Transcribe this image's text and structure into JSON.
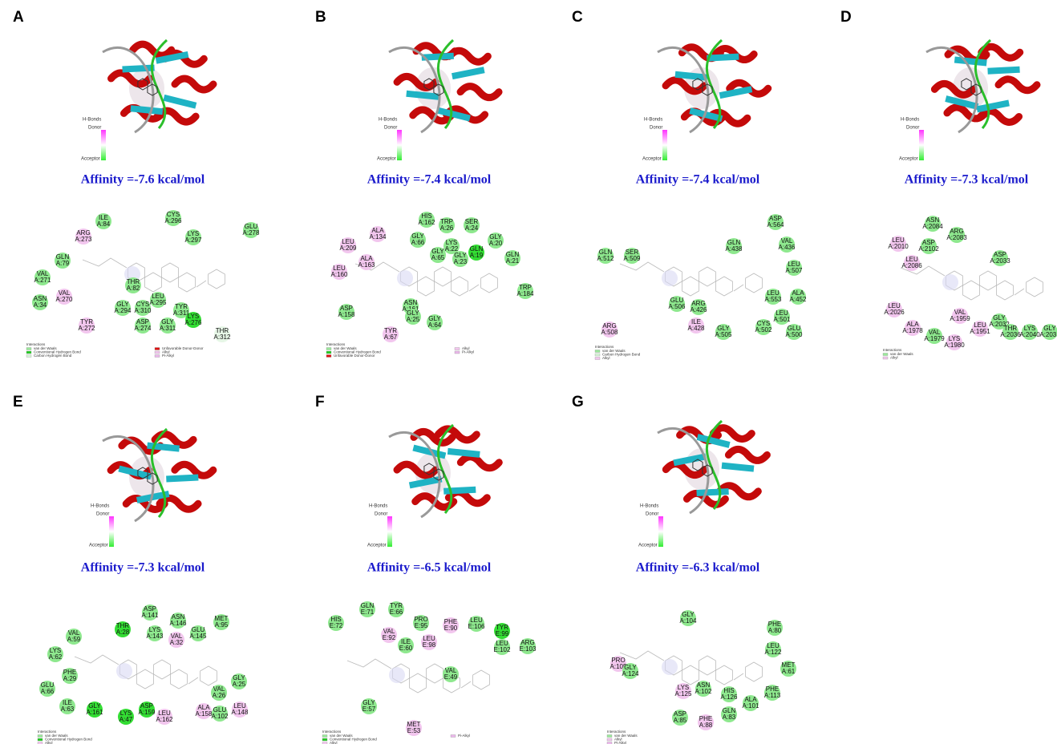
{
  "legend": {
    "title": "H-Bonds",
    "donor": "Donor",
    "acceptor": "Acceptor"
  },
  "interactions_title": "Interactions",
  "panels": [
    {
      "letter": "A",
      "affinity": "Affinity =-7.6 kcal/mol",
      "legend_items": [
        [
          "van der Waals",
          "#9be89b"
        ],
        [
          "Conventional Hydrogen Bond",
          "#22cc22"
        ],
        [
          "Carbon Hydrogen Bond",
          "#d8f5d8"
        ],
        [
          "Unfavorable Donor-Donor",
          "#dd1111"
        ],
        [
          "Alkyl",
          "#f3c6ee"
        ],
        [
          "Pi-Alkyl",
          "#ecb8ec"
        ]
      ],
      "residues": [
        [
          "ILE",
          "A:84",
          "#8ee88e"
        ],
        [
          "CYS",
          "A:296",
          "#8ee88e"
        ],
        [
          "GLU",
          "A:278",
          "#8ee88e"
        ],
        [
          "ARG",
          "A:273",
          "#f2c6ee"
        ],
        [
          "LYS",
          "A:297",
          "#8ee88e"
        ],
        [
          "GLN",
          "A:79",
          "#8ee88e"
        ],
        [
          "VAL",
          "A:271",
          "#8ee88e"
        ],
        [
          "THR",
          "A:82",
          "#8ee88e"
        ],
        [
          "VAL",
          "A:270",
          "#f2c6ee"
        ],
        [
          "LEU",
          "A:295",
          "#8ee88e"
        ],
        [
          "ASN",
          "A:34",
          "#8ee88e"
        ],
        [
          "GLY",
          "A:294",
          "#8ee88e"
        ],
        [
          "CYS",
          "A:310",
          "#8ee88e"
        ],
        [
          "TYR",
          "A:311",
          "#8ee88e"
        ],
        [
          "LYS",
          "A:276",
          "#33dd33"
        ],
        [
          "ASP",
          "A:274",
          "#8ee88e"
        ],
        [
          "GLY",
          "A:311",
          "#8ee88e"
        ],
        [
          "TYR",
          "A:272",
          "#f2c6ee"
        ],
        [
          "THR",
          "A:312",
          "#e6f6e6"
        ]
      ]
    },
    {
      "letter": "B",
      "affinity": "Affinity =-7.4 kcal/mol",
      "legend_items": [
        [
          "van der Waals",
          "#9be89b"
        ],
        [
          "Conventional Hydrogen Bond",
          "#22cc22"
        ],
        [
          "Unfavorable Donor-Donor",
          "#dd1111"
        ],
        [
          "Alkyl",
          "#f3c6ee"
        ],
        [
          "Pi-Alkyl",
          "#ecb8ec"
        ]
      ],
      "residues": [
        [
          "HIS",
          "A:162",
          "#8ee88e"
        ],
        [
          "TRP",
          "A:26",
          "#8ee88e"
        ],
        [
          "SER",
          "A:24",
          "#8ee88e"
        ],
        [
          "ALA",
          "A:134",
          "#f2c6ee"
        ],
        [
          "GLY",
          "A:66",
          "#8ee88e"
        ],
        [
          "GLY",
          "A:20",
          "#8ee88e"
        ],
        [
          "LEU",
          "A:209",
          "#f2c6ee"
        ],
        [
          "GLY",
          "A:65",
          "#8ee88e"
        ],
        [
          "LYS",
          "A:22",
          "#8ee88e"
        ],
        [
          "GLY",
          "A:23",
          "#8ee88e"
        ],
        [
          "GLN",
          "A:19",
          "#33dd33"
        ],
        [
          "GLN",
          "A:21",
          "#8ee88e"
        ],
        [
          "ALA",
          "A:163",
          "#f2c6ee"
        ],
        [
          "LEU",
          "A:160",
          "#f2c6ee"
        ],
        [
          "TRP",
          "A:184",
          "#8ee88e"
        ],
        [
          "ASN",
          "A:161",
          "#8ee88e"
        ],
        [
          "GLY",
          "A:25",
          "#8ee88e"
        ],
        [
          "ASP",
          "A:158",
          "#8ee88e"
        ],
        [
          "GLY",
          "A:64",
          "#8ee88e"
        ],
        [
          "TYR",
          "A:67",
          "#f2c6ee"
        ]
      ]
    },
    {
      "letter": "C",
      "affinity": "Affinity =-7.4 kcal/mol",
      "legend_items": [
        [
          "van der Waals",
          "#9be89b"
        ],
        [
          "Carbon Hydrogen Bond",
          "#d8f5d8"
        ],
        [
          "Alkyl",
          "#f3c6ee"
        ]
      ],
      "residues": [
        [
          "ASP",
          "A:564",
          "#8ee88e"
        ],
        [
          "GLN",
          "A:438",
          "#8ee88e"
        ],
        [
          "VAL",
          "A:436",
          "#8ee88e"
        ],
        [
          "GLN",
          "A:512",
          "#8ee88e"
        ],
        [
          "SER",
          "A:509",
          "#8ee88e"
        ],
        [
          "LEU",
          "A:507",
          "#8ee88e"
        ],
        [
          "ARG",
          "A:426",
          "#8ee88e"
        ],
        [
          "GLU",
          "A:506",
          "#8ee88e"
        ],
        [
          "LEU",
          "A:553",
          "#8ee88e"
        ],
        [
          "ALA",
          "A:452",
          "#8ee88e"
        ],
        [
          "ILE",
          "A:428",
          "#f2c6ee"
        ],
        [
          "LEU",
          "A:501",
          "#8ee88e"
        ],
        [
          "ARG",
          "A:508",
          "#f2c6ee"
        ],
        [
          "GLY",
          "A:505",
          "#8ee88e"
        ],
        [
          "CYS",
          "A:502",
          "#8ee88e"
        ],
        [
          "GLU",
          "A:500",
          "#8ee88e"
        ]
      ]
    },
    {
      "letter": "D",
      "affinity": "Affinity =-7.3 kcal/mol",
      "legend_items": [
        [
          "van der Waals",
          "#9be89b"
        ],
        [
          "Alkyl",
          "#f3c6ee"
        ]
      ],
      "residues": [
        [
          "ASN",
          "A:2084",
          "#8ee88e"
        ],
        [
          "ARG",
          "A:2083",
          "#8ee88e"
        ],
        [
          "LEU",
          "A:2010",
          "#f2c6ee"
        ],
        [
          "ASP",
          "A:2102",
          "#8ee88e"
        ],
        [
          "LEU",
          "A:2086",
          "#f2c6ee"
        ],
        [
          "ASP",
          "A:2033",
          "#8ee88e"
        ],
        [
          "LEU",
          "A:2026",
          "#f2c6ee"
        ],
        [
          "VAL",
          "A:1959",
          "#f2c6ee"
        ],
        [
          "ALA",
          "A:1978",
          "#f2c6ee"
        ],
        [
          "LEU",
          "A:1951",
          "#f2c6ee"
        ],
        [
          "GLY",
          "A:2032",
          "#8ee88e"
        ],
        [
          "THR",
          "A:2036",
          "#8ee88e"
        ],
        [
          "LYS",
          "A:2040",
          "#8ee88e"
        ],
        [
          "GLY",
          "A:2031",
          "#8ee88e"
        ],
        [
          "VAL",
          "A:1979",
          "#8ee88e"
        ],
        [
          "LYS",
          "A:1980",
          "#f2c6ee"
        ]
      ]
    },
    {
      "letter": "E",
      "affinity": "Affinity =-7.3 kcal/mol",
      "legend_items": [
        [
          "van der Waals",
          "#9be89b"
        ],
        [
          "Conventional Hydrogen Bond",
          "#22cc22"
        ],
        [
          "Alkyl",
          "#f3c6ee"
        ]
      ],
      "residues": [
        [
          "ASP",
          "A:141",
          "#8ee88e"
        ],
        [
          "THR",
          "A:28",
          "#33dd33"
        ],
        [
          "ASN",
          "A:146",
          "#8ee88e"
        ],
        [
          "MET",
          "A:95",
          "#8ee88e"
        ],
        [
          "LYS",
          "A:143",
          "#8ee88e"
        ],
        [
          "GLU",
          "A:145",
          "#8ee88e"
        ],
        [
          "VAL",
          "A:59",
          "#8ee88e"
        ],
        [
          "VAL",
          "A:32",
          "#f2c6ee"
        ],
        [
          "LYS",
          "A:62",
          "#8ee88e"
        ],
        [
          "PHE",
          "A:29",
          "#8ee88e"
        ],
        [
          "GLY",
          "A:25",
          "#8ee88e"
        ],
        [
          "VAL",
          "A:26",
          "#8ee88e"
        ],
        [
          "GLU",
          "A:66",
          "#8ee88e"
        ],
        [
          "ILE",
          "A:63",
          "#8ee88e"
        ],
        [
          "GLY",
          "A:161",
          "#33dd33"
        ],
        [
          "ASP",
          "A:159",
          "#33dd33"
        ],
        [
          "LYS",
          "A:47",
          "#33dd33"
        ],
        [
          "LEU",
          "A:162",
          "#f2c6ee"
        ],
        [
          "ALA",
          "A:158",
          "#f2c6ee"
        ],
        [
          "GLU",
          "A:102",
          "#8ee88e"
        ],
        [
          "LEU",
          "A:148",
          "#f2c6ee"
        ]
      ]
    },
    {
      "letter": "F",
      "affinity": "Affinity =-6.5 kcal/mol",
      "legend_items": [
        [
          "van der Waals",
          "#9be89b"
        ],
        [
          "Conventional Hydrogen Bond",
          "#22cc22"
        ],
        [
          "Alkyl",
          "#f3c6ee"
        ],
        [
          "Pi-Alkyl",
          "#ecb8ec"
        ]
      ],
      "residues": [
        [
          "GLN",
          "E:71",
          "#8ee88e"
        ],
        [
          "TYR",
          "E:66",
          "#8ee88e"
        ],
        [
          "HIS",
          "E:72",
          "#8ee88e"
        ],
        [
          "PRO",
          "E:95",
          "#8ee88e"
        ],
        [
          "PHE",
          "E:90",
          "#f2c6ee"
        ],
        [
          "LEU",
          "E:106",
          "#8ee88e"
        ],
        [
          "TYR",
          "E:99",
          "#33dd33"
        ],
        [
          "VAL",
          "E:92",
          "#f2c6ee"
        ],
        [
          "ARG",
          "E:103",
          "#8ee88e"
        ],
        [
          "LEU",
          "E:98",
          "#f2c6ee"
        ],
        [
          "ILE",
          "E:60",
          "#8ee88e"
        ],
        [
          "LEU",
          "E:102",
          "#8ee88e"
        ],
        [
          "VAL",
          "E:49",
          "#8ee88e"
        ],
        [
          "GLY",
          "E:57",
          "#8ee88e"
        ],
        [
          "MET",
          "E:53",
          "#f2c6ee"
        ]
      ]
    },
    {
      "letter": "G",
      "affinity": "Affinity =-6.3 kcal/mol",
      "legend_items": [
        [
          "van der Waals",
          "#9be89b"
        ],
        [
          "Alkyl",
          "#f3c6ee"
        ],
        [
          "Pi-Alkyl",
          "#ecb8ec"
        ]
      ],
      "residues": [
        [
          "GLY",
          "A:104",
          "#8ee88e"
        ],
        [
          "PHE",
          "A:80",
          "#8ee88e"
        ],
        [
          "LEU",
          "A:122",
          "#8ee88e"
        ],
        [
          "PRO",
          "A:105",
          "#f2c6ee"
        ],
        [
          "GLY",
          "A:124",
          "#8ee88e"
        ],
        [
          "MET",
          "A:61",
          "#8ee88e"
        ],
        [
          "ASN",
          "A:102",
          "#8ee88e"
        ],
        [
          "LYS",
          "A:125",
          "#f2c6ee"
        ],
        [
          "HIS",
          "A:126",
          "#8ee88e"
        ],
        [
          "PHE",
          "A:113",
          "#8ee88e"
        ],
        [
          "ALA",
          "A:101",
          "#8ee88e"
        ],
        [
          "ASP",
          "A:85",
          "#8ee88e"
        ],
        [
          "PHE",
          "A:88",
          "#f2c6ee"
        ],
        [
          "GLN",
          "A:83",
          "#8ee88e"
        ]
      ]
    }
  ]
}
